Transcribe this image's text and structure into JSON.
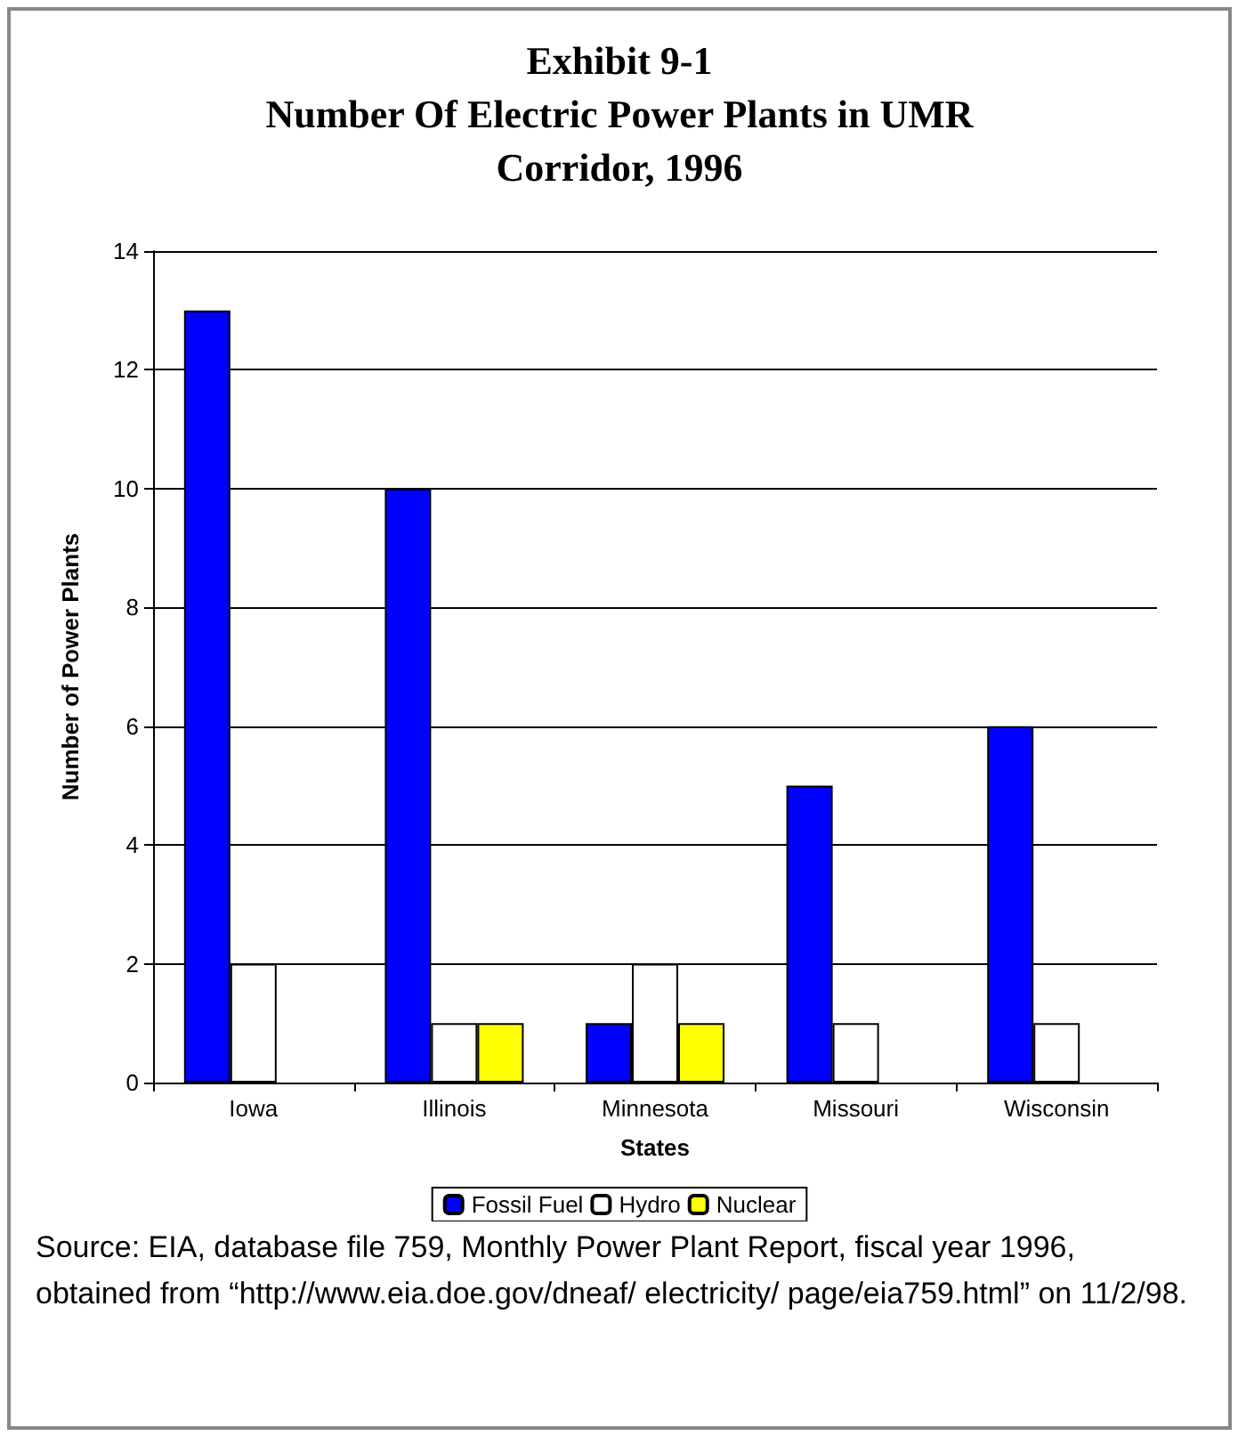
{
  "chart_data": {
    "type": "bar",
    "title": "Exhibit 9-1\nNumber Of Electric Power Plants in UMR\nCorridor, 1996",
    "xlabel": "States",
    "ylabel": "Number of Power Plants",
    "categories": [
      "Iowa",
      "Illinois",
      "Minnesota",
      "Missouri",
      "Wisconsin"
    ],
    "series": [
      {
        "name": "Fossil Fuel",
        "color": "#0000ff",
        "values": [
          13,
          10,
          1,
          5,
          6
        ]
      },
      {
        "name": "Hydro",
        "color": "#ffffff",
        "values": [
          2,
          1,
          2,
          1,
          1
        ]
      },
      {
        "name": "Nuclear",
        "color": "#ffff00",
        "values": [
          0,
          1,
          1,
          0,
          0
        ]
      }
    ],
    "ylim": [
      0,
      14
    ],
    "yticks": [
      0,
      2,
      4,
      6,
      8,
      10,
      12,
      14
    ],
    "grid": "y",
    "legend": "bottom",
    "annotations": [
      "Source: EIA, database file 759, Monthly Power Plant Report, fiscal year 1996, obtained from “http://www.eia.doe.gov/dneaf/ electricity/ page/eia759.html” on 11/2/98."
    ]
  }
}
